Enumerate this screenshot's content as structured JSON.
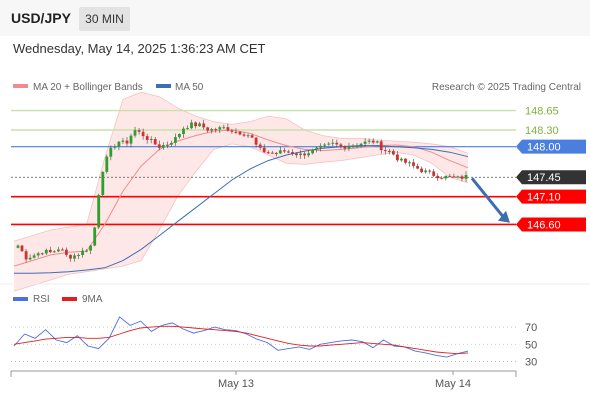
{
  "header": {
    "symbol": "USD/JPY",
    "timeframe": "30 MIN",
    "datetime": "Wednesday, May 14, 2025 1:36:23 AM CET"
  },
  "colors": {
    "support": "#ff0000",
    "pivot": "#4a7fe0",
    "resistance": "#c9e0a8",
    "current": "#333333",
    "bollinger": "#f38b8b",
    "ma50": "#3b6fb5",
    "rsi": "#4d6fe0",
    "rsi_ma": "#e02020",
    "arrow": "#3d6fb0",
    "candle_up": "#2e9e2e",
    "candle_down": "#d32f2f"
  },
  "chart_data": [
    {
      "type": "candlestick",
      "legend": [
        {
          "label": "MA 20 + Bollinger Bands",
          "color": "#f38b8b"
        },
        {
          "label": "MA 50",
          "color": "#3b6fb5"
        }
      ],
      "watermark": "Research © 2025 Trading Central",
      "ylim": [
        145.6,
        149.2
      ],
      "levels": [
        {
          "label": "148.65",
          "value": 148.65,
          "kind": "resistance"
        },
        {
          "label": "148.30",
          "value": 148.3,
          "kind": "resistance"
        },
        {
          "label": "148.00",
          "value": 148.0,
          "kind": "pivot"
        },
        {
          "label": "147.45",
          "value": 147.45,
          "kind": "current"
        },
        {
          "label": "147.10",
          "value": 147.1,
          "kind": "support"
        },
        {
          "label": "146.60",
          "value": 146.6,
          "kind": "support"
        }
      ],
      "x_ticks": [
        "May 13",
        "May 14"
      ],
      "close_path": [
        146.22,
        146.0,
        146.05,
        146.12,
        146.09,
        146.18,
        146.01,
        146.05,
        146.13,
        146.24,
        147.5,
        147.9,
        148.1,
        148.05,
        148.3,
        148.22,
        148.1,
        148.0,
        148.05,
        148.15,
        148.35,
        148.4,
        148.38,
        148.3,
        148.32,
        148.34,
        148.28,
        148.25,
        148.2,
        147.95,
        147.9,
        147.88,
        147.92,
        147.9,
        147.85,
        147.9,
        147.95,
        148.0,
        148.05,
        148.0,
        148.02,
        148.05,
        148.08,
        148.1,
        147.95,
        147.9,
        147.75,
        147.7,
        147.62,
        147.55,
        147.5,
        147.46,
        147.45,
        147.43,
        147.46
      ],
      "ma20_path": [
        145.85,
        145.95,
        146.05,
        146.1,
        146.12,
        146.6,
        147.2,
        147.65,
        147.95,
        148.1,
        148.2,
        148.28,
        148.3,
        148.24,
        148.12,
        148.02,
        147.95,
        147.93,
        147.95,
        147.98,
        148.02,
        148.03,
        148.0,
        147.9,
        147.75,
        147.62
      ],
      "boll_upper_path": [
        146.3,
        146.4,
        146.5,
        146.55,
        146.6,
        147.8,
        148.85,
        148.98,
        148.9,
        148.7,
        148.55,
        148.45,
        148.4,
        148.45,
        148.55,
        148.5,
        148.3,
        148.2,
        148.15,
        148.15,
        148.12,
        148.1,
        148.08,
        148.05,
        148.0,
        147.88
      ],
      "boll_lower_path": [
        145.4,
        145.5,
        145.6,
        145.7,
        145.75,
        145.8,
        145.85,
        145.95,
        146.5,
        147.1,
        147.55,
        147.95,
        148.05,
        148.0,
        147.85,
        147.7,
        147.68,
        147.72,
        147.75,
        147.8,
        147.85,
        147.9,
        147.85,
        147.7,
        147.45,
        147.35
      ],
      "ma50_path": [
        145.72,
        145.72,
        145.73,
        145.75,
        145.78,
        145.82,
        145.95,
        146.15,
        146.4,
        146.65,
        146.9,
        147.15,
        147.4,
        147.6,
        147.75,
        147.85,
        147.92,
        147.97,
        148.0,
        148.02,
        148.02,
        148.0,
        147.98,
        147.95,
        147.9,
        147.82
      ]
    },
    {
      "type": "line",
      "legend": [
        {
          "label": "RSI",
          "color": "#4d6fe0"
        },
        {
          "label": "9MA",
          "color": "#e02020"
        }
      ],
      "ylim": [
        20,
        90
      ],
      "y_ticks": [
        70,
        50,
        30
      ],
      "series": [
        {
          "name": "RSI",
          "values": [
            48,
            62,
            57,
            67,
            55,
            52,
            60,
            48,
            45,
            57,
            82,
            72,
            77,
            65,
            72,
            75,
            68,
            63,
            66,
            70,
            67,
            66,
            62,
            56,
            52,
            43,
            45,
            47,
            44,
            50,
            52,
            54,
            55,
            53,
            46,
            55,
            48,
            47,
            42,
            40,
            37,
            35,
            39,
            42
          ]
        },
        {
          "name": "9MA",
          "values": [
            50,
            52,
            54,
            56,
            57,
            58,
            58,
            57,
            57,
            58,
            62,
            66,
            69,
            70,
            71,
            71,
            70,
            69,
            68,
            67,
            66,
            65,
            63,
            60,
            57,
            54,
            51,
            49,
            48,
            48,
            49,
            50,
            51,
            52,
            51,
            50,
            49,
            47,
            45,
            43,
            41,
            40,
            39,
            40
          ]
        }
      ]
    }
  ]
}
